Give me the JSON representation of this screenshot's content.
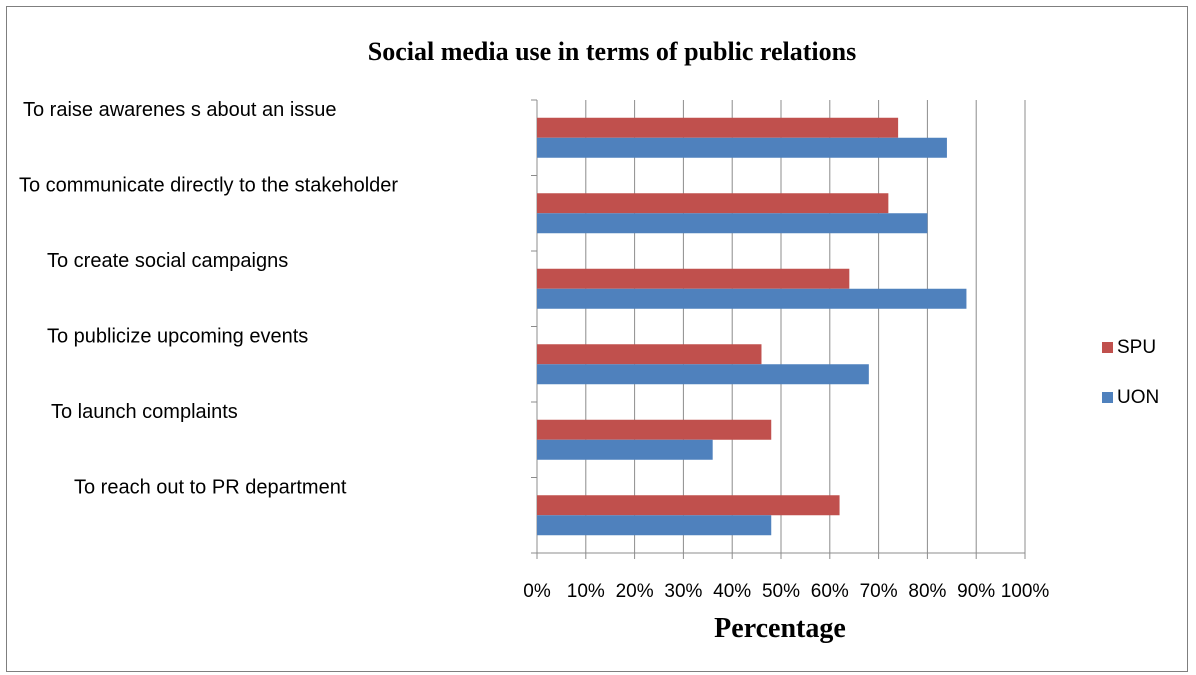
{
  "chart_data": {
    "type": "bar",
    "orientation": "horizontal",
    "title": "Social media use in terms of public relations",
    "xlabel": "Percentage",
    "ylabel": "",
    "xlim": [
      0,
      100
    ],
    "xticks": [
      "0%",
      "10%",
      "20%",
      "30%",
      "40%",
      "50%",
      "60%",
      "70%",
      "80%",
      "90%",
      "100%"
    ],
    "grid": "vertical",
    "legend_position": "right",
    "categories": [
      "To raise awarenes s about an issue",
      "To communicate directly to the stakeholder",
      "To create social campaigns",
      "To publicize upcoming events",
      "To launch complaints",
      "To reach out to PR department"
    ],
    "series": [
      {
        "name": "SPU",
        "color": "#c0504d",
        "values": [
          74,
          72,
          64,
          46,
          48,
          62
        ]
      },
      {
        "name": "UON",
        "color": "#4f81bd",
        "values": [
          84,
          80,
          88,
          68,
          36,
          48
        ]
      }
    ],
    "legend_order": [
      "SPU",
      "UON"
    ]
  }
}
